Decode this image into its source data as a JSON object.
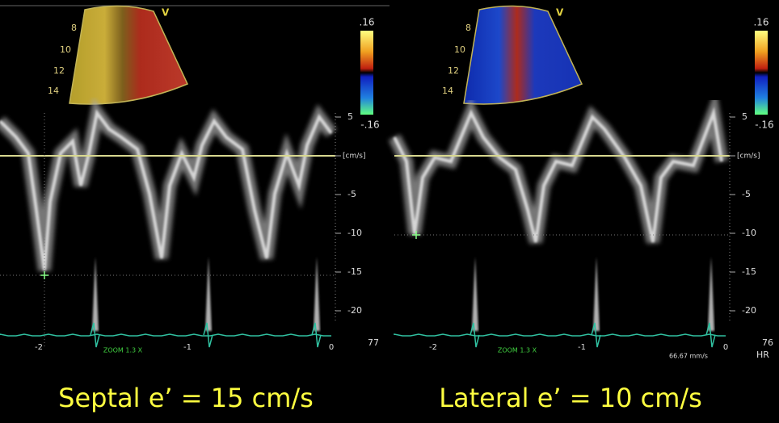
{
  "panels": [
    {
      "depth_labels": [
        "8",
        "10",
        "12",
        "14"
      ],
      "sector_label": "V",
      "color_scale": [
        ".16",
        "-.16"
      ],
      "velocity_axis": [
        "5",
        "[cm/s]",
        "-5",
        "-10",
        "-15",
        "-20"
      ],
      "time_labels": [
        "-2",
        "-1",
        "0"
      ],
      "zoom": "ZOOM 1.3 X",
      "heart_rate": "77",
      "caption": "Septal e’ = 15 cm/s"
    },
    {
      "depth_labels": [
        "8",
        "10",
        "12",
        "14"
      ],
      "sector_label": "V",
      "color_scale": [
        ".16",
        "-.16"
      ],
      "velocity_axis": [
        "5",
        "[cm/s]",
        "-5",
        "-10",
        "-15",
        "-20"
      ],
      "time_labels": [
        "-2",
        "-1",
        "0"
      ],
      "zoom": "ZOOM 1.3 X",
      "sweep": "66.67 mm/s",
      "heart_rate": "76",
      "hr_label": "HR",
      "caption": "Lateral e’ = 10 cm/s"
    }
  ]
}
